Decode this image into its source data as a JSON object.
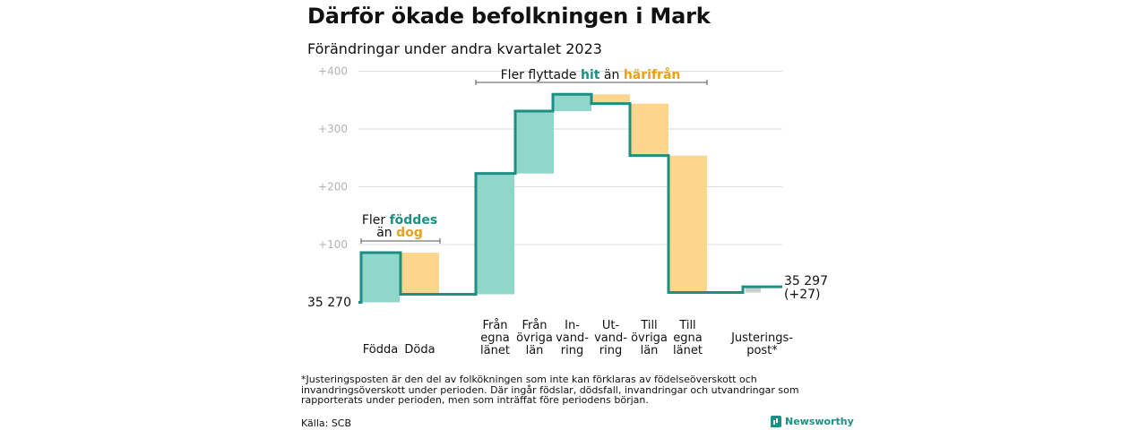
{
  "title": "Därför ökade befolkningen i Mark",
  "subtitle": "Förändringar under andra kvartalet 2023",
  "footnote": "*Justeringsposten är den del av folkökningen som inte kan förklaras av födelseöverskott och invandringsöverskott under perioden. Där ingår födslar, dödsfall, invandringar och utvandringar som rapporterats under perioden, men som inträffat före periodens början.",
  "source": "Källa: SCB",
  "brand": "Newsworthy",
  "colors": {
    "increase": "#8fd6cb",
    "decrease": "#fbd68c",
    "adjust": "#cccccc",
    "line": "#1d8f82",
    "orange_text": "#e8a21a",
    "grid": "#dddddd",
    "tick": "#b3b3b3"
  },
  "chart_data": {
    "type": "waterfall",
    "start_value": 35270,
    "start_label": "35  270",
    "end_label": "35 297",
    "end_change_label": "(+27)",
    "yticks": [
      "+100",
      "+200",
      "+300",
      "+400"
    ],
    "ytick_values": [
      100,
      200,
      300,
      400
    ],
    "ylim": [
      0,
      400
    ],
    "steps": [
      {
        "label": "Födda",
        "delta": 86,
        "kind": "increase"
      },
      {
        "label": "Döda",
        "delta": -72,
        "kind": "decrease"
      },
      {
        "label": "Från egna länet",
        "delta": 209,
        "kind": "increase"
      },
      {
        "label": "Från övriga län",
        "delta": 108,
        "kind": "increase"
      },
      {
        "label": "In-vand-ring",
        "delta": 29,
        "kind": "increase"
      },
      {
        "label": "Ut-vand-ring",
        "delta": -16,
        "kind": "decrease"
      },
      {
        "label": "Till övriga län",
        "delta": -90,
        "kind": "decrease"
      },
      {
        "label": "Till egna länet",
        "delta": -237,
        "kind": "decrease"
      },
      {
        "label": "Justerings-post*",
        "delta": 10,
        "kind": "adjust"
      }
    ],
    "category_labels": [
      [
        "Födda"
      ],
      [
        "Döda"
      ],
      [
        "Från",
        "egna",
        "länet"
      ],
      [
        "Från",
        "övriga",
        "län"
      ],
      [
        "In-",
        "vand-",
        "ring"
      ],
      [
        "Ut-",
        "vand-",
        "ring"
      ],
      [
        "Till",
        "övriga",
        "län"
      ],
      [
        "Till",
        "egna",
        "länet"
      ],
      [
        "Justerings-",
        "post*"
      ]
    ],
    "annotations": {
      "births": {
        "line1_prefix": "Fler ",
        "line1_highlight": "föddes",
        "line2_prefix": "än ",
        "line2_highlight": "dog"
      },
      "migration": {
        "prefix": "Fler flyttade ",
        "highlight1": "hit",
        "middle": " än ",
        "highlight2": "härifrån"
      }
    }
  }
}
